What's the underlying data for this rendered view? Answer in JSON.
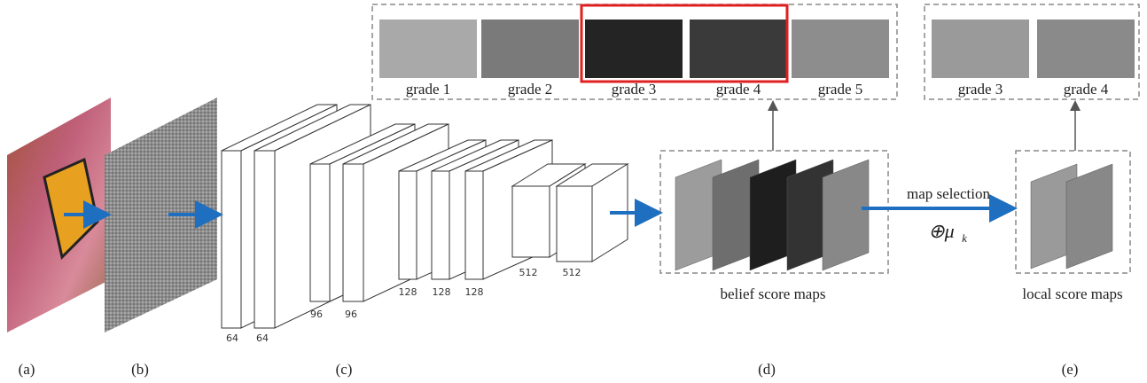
{
  "grades_all": [
    "grade 1",
    "grade 2",
    "grade 3",
    "grade 4",
    "grade 5"
  ],
  "grades_selected": [
    "grade 3",
    "grade 4"
  ],
  "layers": [
    "64",
    "64",
    "96",
    "96",
    "128",
    "128",
    "128",
    "512",
    "512"
  ],
  "belief_label": "belief score maps",
  "local_label": "local score maps",
  "arrow_label": "map selection",
  "operator": {
    "symbol": "⊕μ",
    "subscript": "k"
  },
  "panels": [
    "(a)",
    "(b)",
    "(c)",
    "(d)",
    "(e)"
  ]
}
